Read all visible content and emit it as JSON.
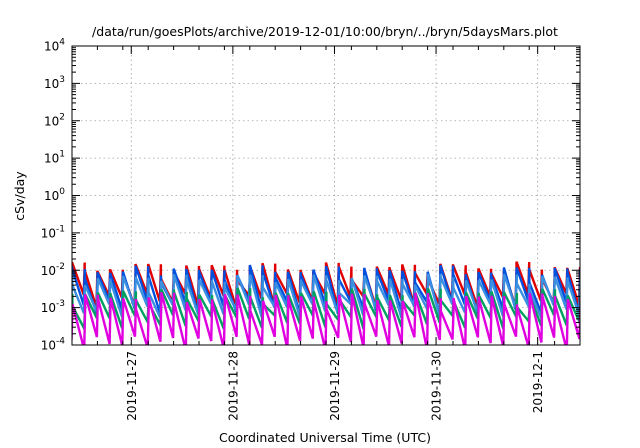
{
  "chart_data": {
    "type": "line",
    "title": "/data/run/goesPlots/archive/2019-12-01/10:00/bryn/../bryn/5daysMars.plot",
    "xlabel": "Coordinated Universal Time (UTC)",
    "ylabel": "cSv/day",
    "yscale": "log",
    "ylim": [
      0.0001,
      10000
    ],
    "xlim": [
      "2019-11-26 10:00",
      "2019-12-01 10:00"
    ],
    "grid": true,
    "y_tick_labels": [
      {
        "value": 0.0001,
        "base": "10",
        "exp": "-4"
      },
      {
        "value": 0.001,
        "base": "10",
        "exp": "-3"
      },
      {
        "value": 0.01,
        "base": "10",
        "exp": "-2"
      },
      {
        "value": 0.1,
        "base": "10",
        "exp": "-1"
      },
      {
        "value": 1,
        "base": "10",
        "exp": "0"
      },
      {
        "value": 10,
        "base": "10",
        "exp": "1"
      },
      {
        "value": 100,
        "base": "10",
        "exp": "2"
      },
      {
        "value": 1000,
        "base": "10",
        "exp": "3"
      },
      {
        "value": 10000,
        "base": "10",
        "exp": "4"
      }
    ],
    "x_tick_labels": [
      {
        "value": "2019-11-27",
        "label": "2019-11-27"
      },
      {
        "value": "2019-11-28",
        "label": "2019-11-28"
      },
      {
        "value": "2019-11-29",
        "label": "2019-11-29"
      },
      {
        "value": "2019-11-30",
        "label": "2019-11-30"
      },
      {
        "value": "2019-12-01",
        "label": "2019-12-1"
      }
    ],
    "series": [
      {
        "color": "#e00000",
        "peak": 0.011,
        "trough": 0.0017,
        "phase": 0.0
      },
      {
        "color": "#0050e0",
        "peak": 0.009,
        "trough": 0.0011,
        "phase": 0.01
      },
      {
        "color": "#3a8fe0",
        "peak": 0.0055,
        "trough": 0.0009,
        "phase": 0.02
      },
      {
        "color": "#00a060",
        "peak": 0.0022,
        "trough": 0.00045,
        "phase": 0.03
      },
      {
        "color": "#e000e0",
        "peak": 0.0017,
        "trough": 0.00012,
        "phase": 0.04
      }
    ],
    "cycle_hours": 3
  }
}
